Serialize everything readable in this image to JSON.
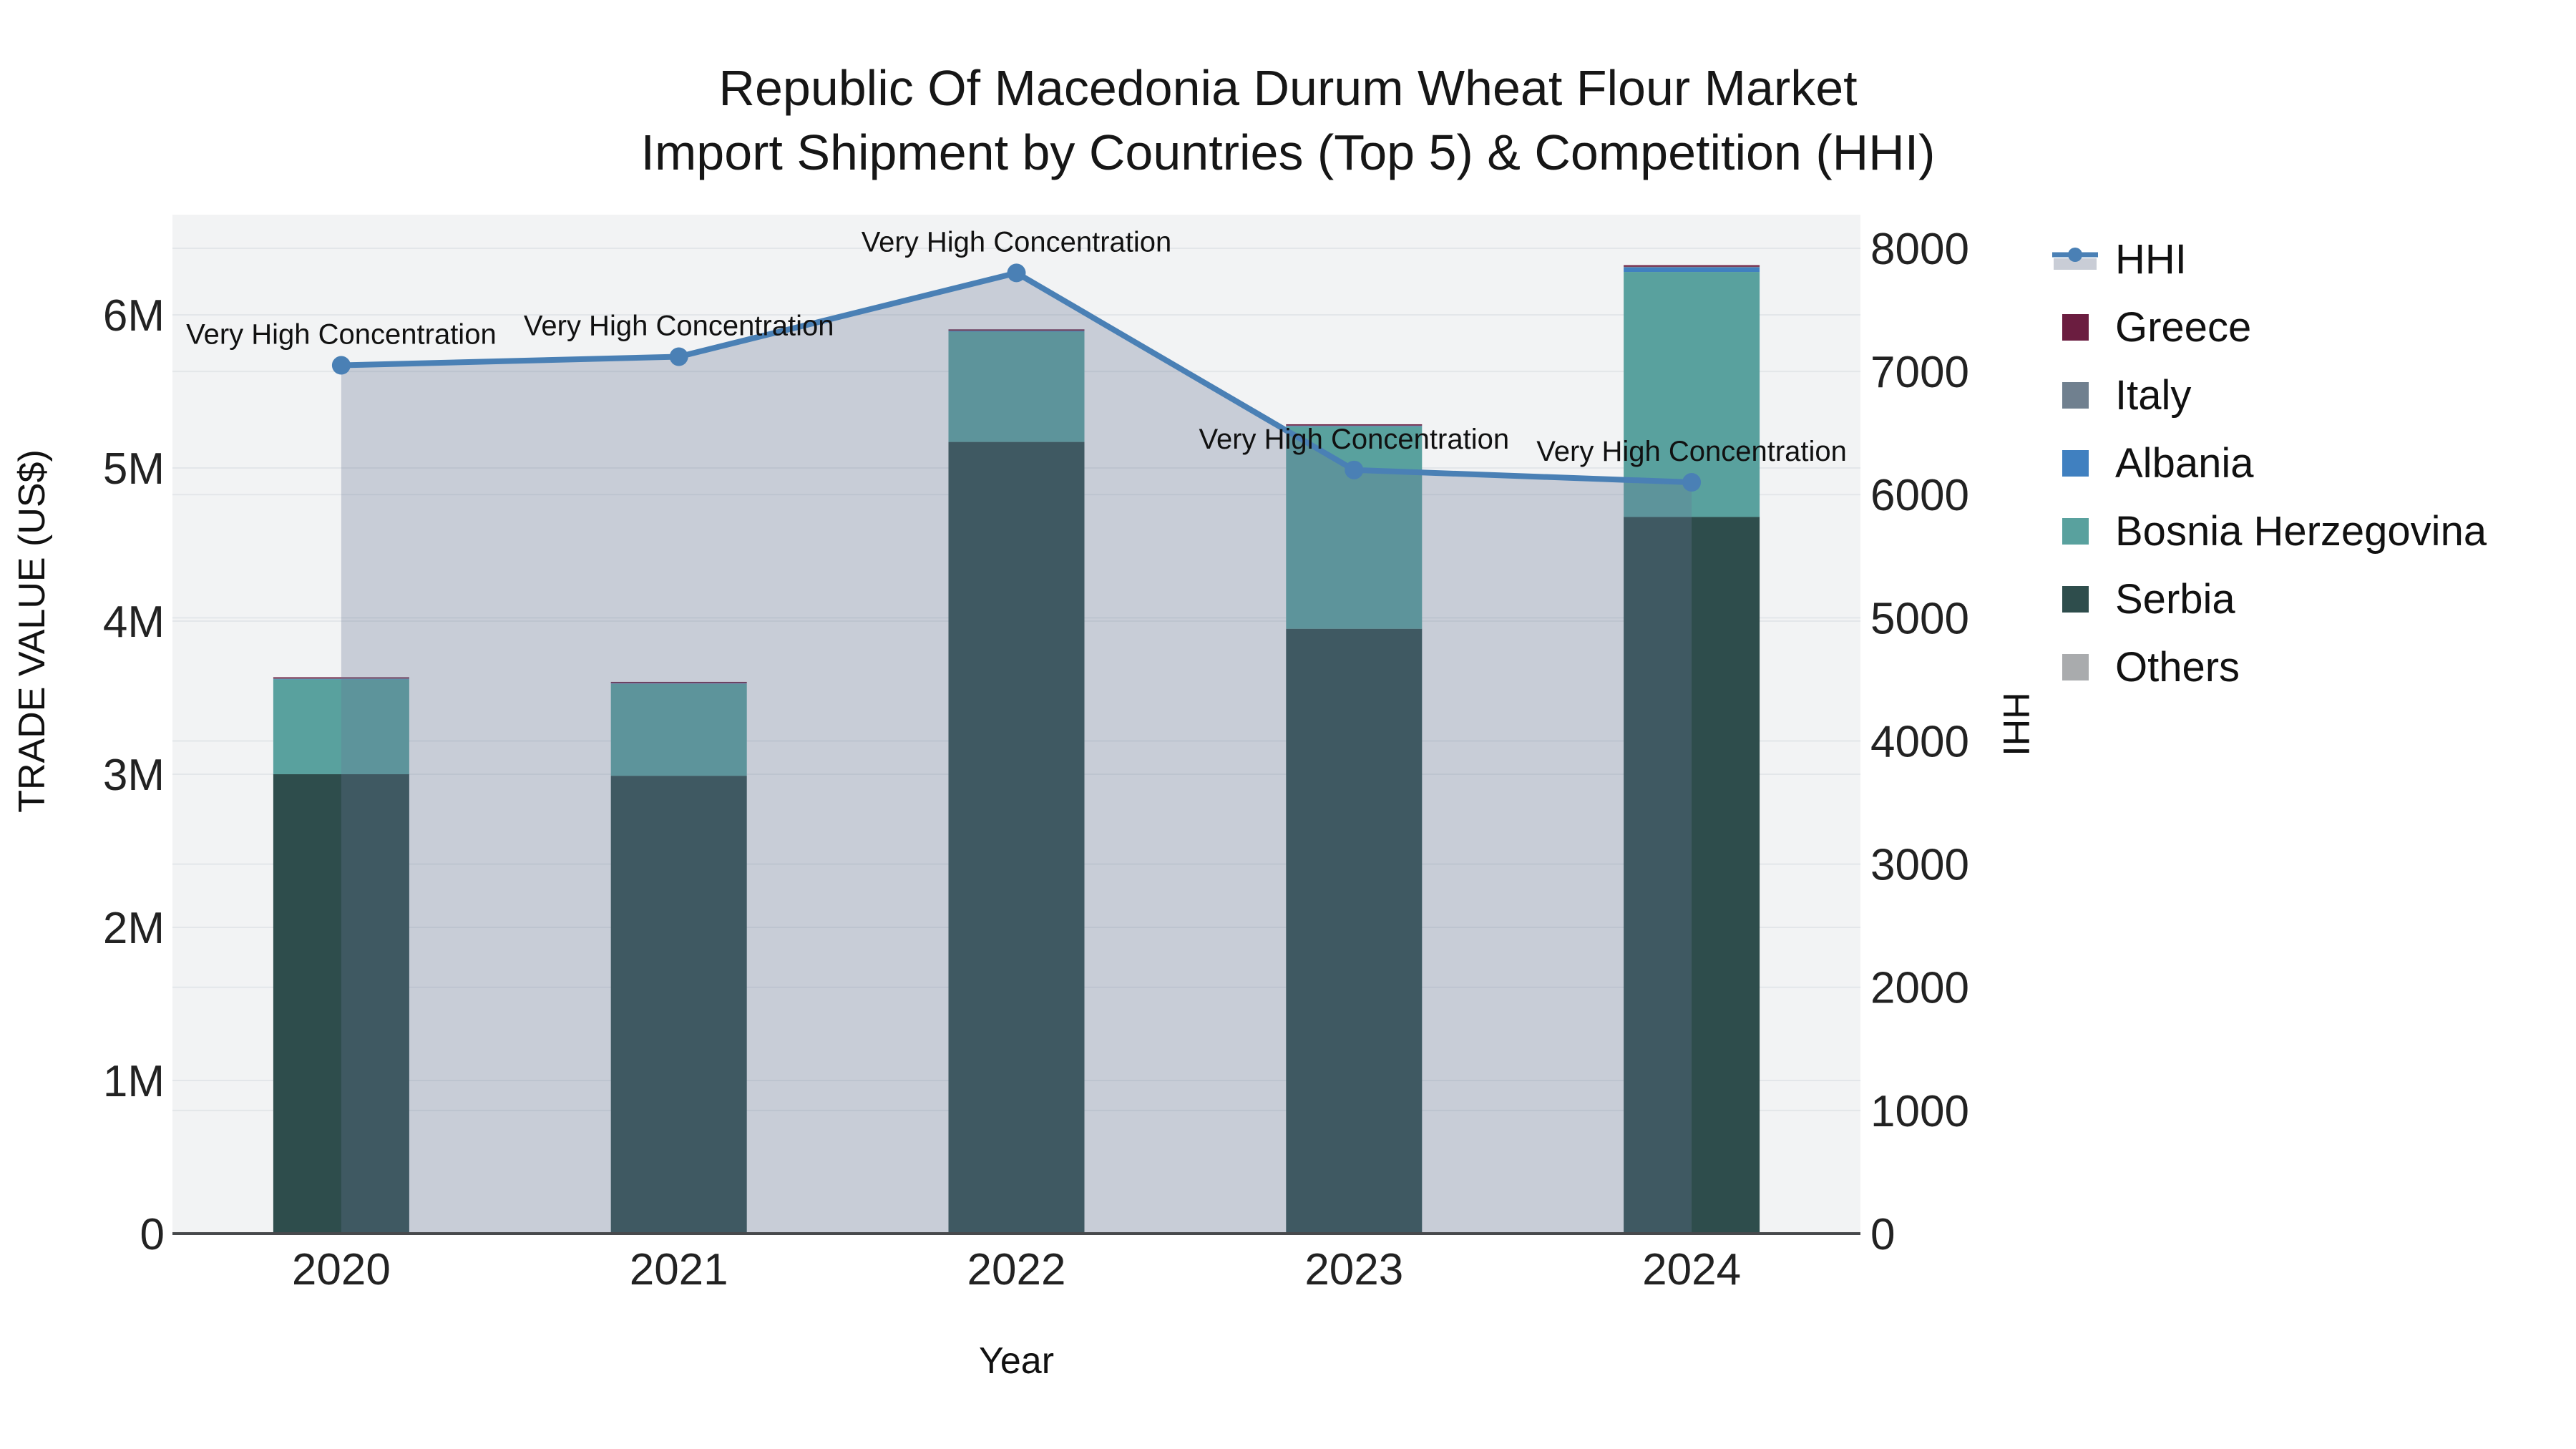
{
  "title": {
    "line1": "Republic Of Macedonia Durum Wheat Flour Market",
    "line2": "Import Shipment by Countries (Top 5) & Competition (HHI)"
  },
  "legend": {
    "items": [
      {
        "label": "HHI",
        "type": "line",
        "color": "#4a80b5",
        "band_color": "#c9cdd6"
      },
      {
        "label": "Greece",
        "type": "swatch",
        "color": "#6b1d40"
      },
      {
        "label": "Italy",
        "type": "swatch",
        "color": "#70808f"
      },
      {
        "label": "Albania",
        "type": "swatch",
        "color": "#4080c0"
      },
      {
        "label": "Bosnia Herzegovina",
        "type": "swatch",
        "color": "#59a19e"
      },
      {
        "label": "Serbia",
        "type": "swatch",
        "color": "#2e4d4c"
      },
      {
        "label": "Others",
        "type": "swatch",
        "color": "#a9abad"
      }
    ]
  },
  "axes": {
    "left": {
      "title": "TRADE VALUE (US$)",
      "ticks": [
        "0",
        "1M",
        "2M",
        "3M",
        "4M",
        "5M",
        "6M"
      ]
    },
    "right": {
      "title": "HHI",
      "ticks": [
        "0",
        "1000",
        "2000",
        "3000",
        "4000",
        "5000",
        "6000",
        "7000",
        "8000"
      ]
    },
    "x": {
      "title": "Year",
      "ticks": [
        "2020",
        "2021",
        "2022",
        "2023",
        "2024"
      ]
    }
  },
  "chart_data": {
    "type": "bar+line",
    "title": "Republic Of Macedonia Durum Wheat Flour Market — Import Shipment by Countries (Top 5) & Competition (HHI)",
    "categories": [
      "2020",
      "2021",
      "2022",
      "2023",
      "2024"
    ],
    "bar_unit": "US$ trade value",
    "stack_order_bottom_to_top": [
      "Serbia",
      "Bosnia Herzegovina",
      "Albania",
      "Italy",
      "Greece",
      "Others"
    ],
    "series": [
      {
        "name": "Serbia",
        "color": "#2e4d4c",
        "values": [
          3000000,
          2990000,
          5170000,
          3950000,
          4680000
        ]
      },
      {
        "name": "Bosnia Herzegovina",
        "color": "#59a19e",
        "values": [
          620000,
          600000,
          720000,
          1320000,
          1600000
        ]
      },
      {
        "name": "Albania",
        "color": "#4080c0",
        "values": [
          2000,
          2000,
          3000,
          3000,
          30000
        ]
      },
      {
        "name": "Italy",
        "color": "#70808f",
        "values": [
          3000,
          3000,
          4000,
          4000,
          4000
        ]
      },
      {
        "name": "Greece",
        "color": "#6b1d40",
        "values": [
          8000,
          8000,
          8000,
          8000,
          10000
        ]
      },
      {
        "name": "Others",
        "color": "#a9abad",
        "values": [
          0,
          0,
          0,
          0,
          0
        ]
      }
    ],
    "line_series": {
      "name": "HHI",
      "axis": "right",
      "color": "#4a80b5",
      "area_fill": "rgba(104,119,149,0.30)",
      "values": [
        7050,
        7120,
        7800,
        6200,
        6100
      ]
    },
    "annotations": [
      {
        "x": "2020",
        "text": "Very High Concentration"
      },
      {
        "x": "2021",
        "text": "Very High Concentration"
      },
      {
        "x": "2022",
        "text": "Very High Concentration"
      },
      {
        "x": "2023",
        "text": "Very High Concentration"
      },
      {
        "x": "2024",
        "text": "Very High Concentration"
      }
    ],
    "xlabel": "Year",
    "ylabel_left": "TRADE VALUE (US$)",
    "ylabel_right": "HHI",
    "left_axis_range": [
      0,
      6654000
    ],
    "right_axis_range": [
      0,
      8273
    ],
    "plot_bg": "#f2f3f4",
    "grid_color": "#e3e6e9",
    "zero_line_color": "#47494c",
    "legend_position": "right",
    "grid": true
  }
}
